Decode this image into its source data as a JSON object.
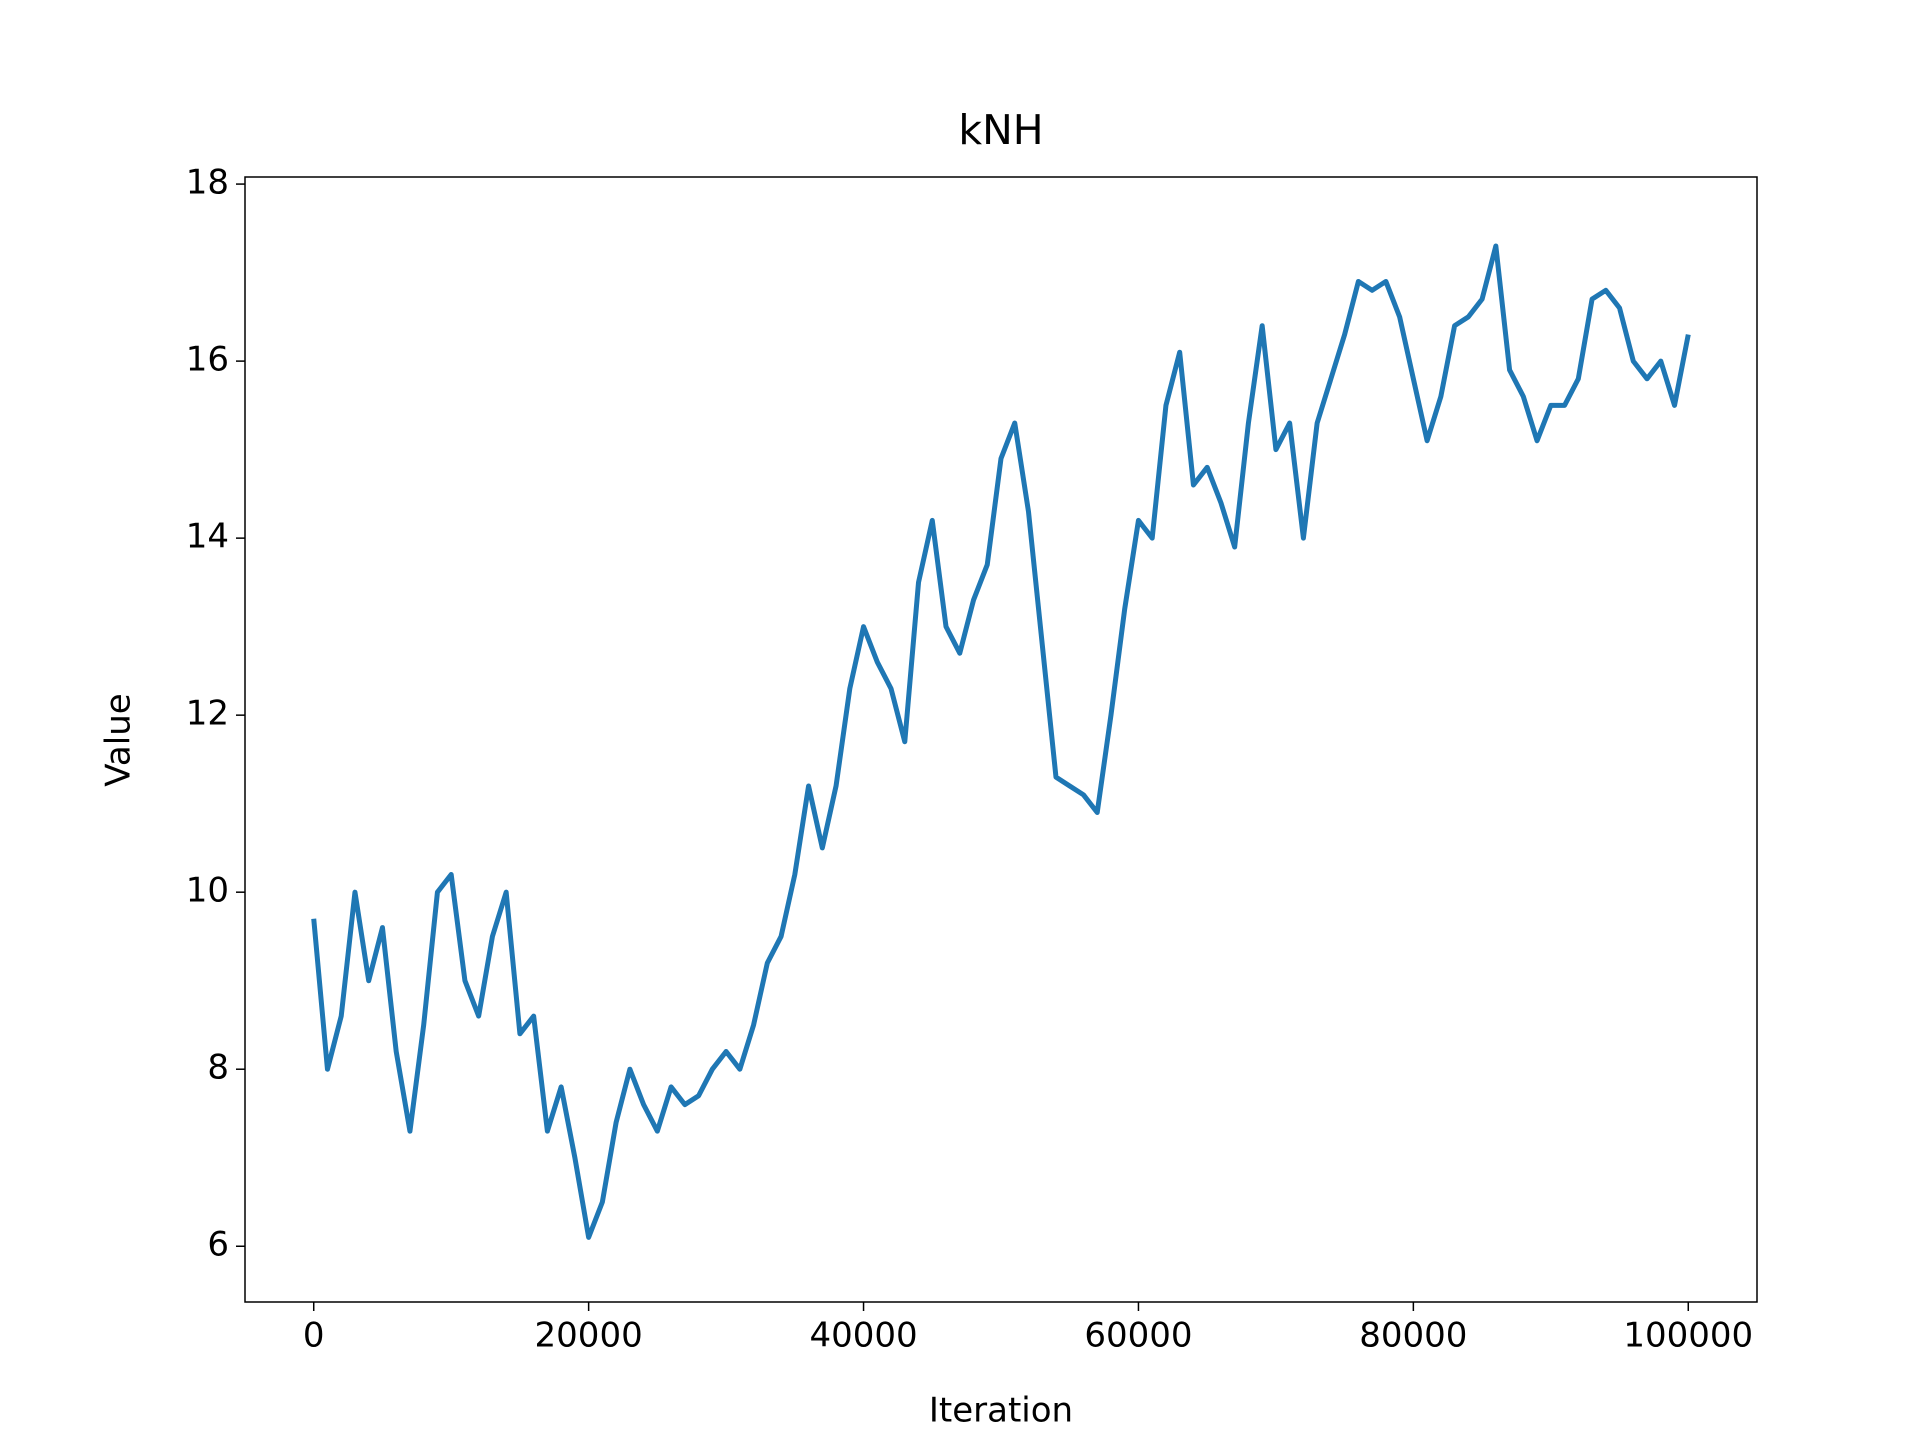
{
  "chart_data": {
    "type": "line",
    "title": "kNH",
    "x_label": "Iteration",
    "y_label": "Value",
    "x": [
      0,
      1000,
      2000,
      3000,
      4000,
      5000,
      6000,
      7000,
      8000,
      9000,
      10000,
      11000,
      12000,
      13000,
      14000,
      15000,
      16000,
      17000,
      18000,
      19000,
      20000,
      21000,
      22000,
      23000,
      24000,
      25000,
      26000,
      27000,
      28000,
      29000,
      30000,
      31000,
      32000,
      33000,
      34000,
      35000,
      36000,
      37000,
      38000,
      39000,
      40000,
      41000,
      42000,
      43000,
      44000,
      45000,
      46000,
      47000,
      48000,
      49000,
      50000,
      51000,
      52000,
      53000,
      54000,
      55000,
      56000,
      57000,
      58000,
      59000,
      60000,
      61000,
      62000,
      63000,
      64000,
      65000,
      66000,
      67000,
      68000,
      69000,
      70000,
      71000,
      72000,
      73000,
      74000,
      75000,
      76000,
      77000,
      78000,
      79000,
      80000,
      81000,
      82000,
      83000,
      84000,
      85000,
      86000,
      87000,
      88000,
      89000,
      90000,
      91000,
      92000,
      93000,
      94000,
      95000,
      96000,
      97000,
      98000,
      99000,
      100000
    ],
    "series": [
      {
        "name": "kNH",
        "color": "#1f77b4",
        "values": [
          9.7,
          8.0,
          8.6,
          10.0,
          9.0,
          9.6,
          8.2,
          7.3,
          8.5,
          10.0,
          10.2,
          9.0,
          8.6,
          9.5,
          10.0,
          8.4,
          8.6,
          7.3,
          7.8,
          7.0,
          6.1,
          6.5,
          7.4,
          8.0,
          7.6,
          7.3,
          7.8,
          7.6,
          7.7,
          8.0,
          8.2,
          8.0,
          8.5,
          9.2,
          9.5,
          10.2,
          11.2,
          10.5,
          11.2,
          12.3,
          13.0,
          12.6,
          12.3,
          11.7,
          13.5,
          14.2,
          13.0,
          12.7,
          13.3,
          13.7,
          14.9,
          15.3,
          14.3,
          12.8,
          11.3,
          11.2,
          11.1,
          10.9,
          12.0,
          13.2,
          14.2,
          14.0,
          15.5,
          16.1,
          14.6,
          14.8,
          14.4,
          13.9,
          15.3,
          16.4,
          15.0,
          15.3,
          14.0,
          15.3,
          15.8,
          16.3,
          16.9,
          16.8,
          16.9,
          16.5,
          15.8,
          15.1,
          15.6,
          16.4,
          16.5,
          16.7,
          17.3,
          15.9,
          15.6,
          15.1,
          15.5,
          15.5,
          15.8,
          16.7,
          16.8,
          16.6,
          16.0,
          15.8,
          16.0,
          15.5,
          16.3
        ]
      }
    ],
    "xlim": [
      -5000,
      105000
    ],
    "ylim": [
      5.37,
      18.08
    ],
    "xticks": [
      0,
      20000,
      40000,
      60000,
      80000,
      100000
    ],
    "yticks": [
      6,
      8,
      10,
      12,
      14,
      16,
      18
    ]
  }
}
